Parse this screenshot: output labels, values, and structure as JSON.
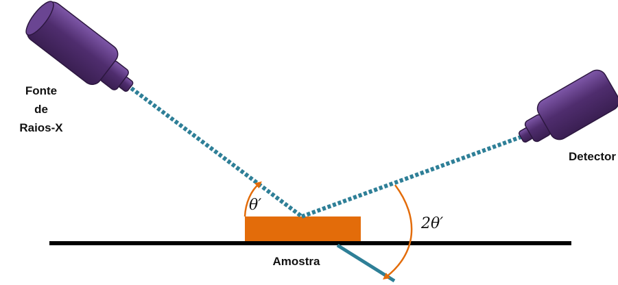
{
  "labels": {
    "source_line1": "Fonte",
    "source_line2": "de",
    "source_line3": "Raios-X",
    "detector": "Detector",
    "sample": "Amostra",
    "theta": "θ′",
    "two_theta": "2θ′"
  },
  "colors": {
    "beam": "#2e7f97",
    "sample": "#e36c0a",
    "angle_arrow": "#e36c0a",
    "tube_body": "#4b2a68",
    "tube_light": "#6a4592",
    "base_line": "#000000"
  },
  "icons": {
    "source": "xray-tube-icon",
    "detector": "detector-tube-icon"
  }
}
